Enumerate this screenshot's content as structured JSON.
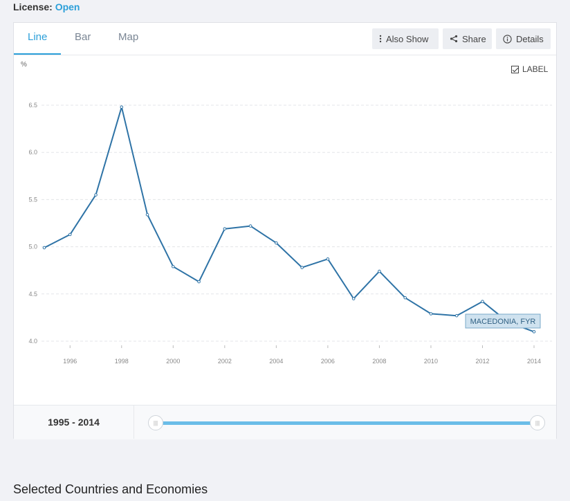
{
  "license": {
    "label": "License:",
    "value": "Open"
  },
  "tabs": [
    {
      "label": "Line"
    },
    {
      "label": "Bar"
    },
    {
      "label": "Map"
    }
  ],
  "toolbar": {
    "also_show": "Also Show",
    "share": "Share",
    "details": "Details"
  },
  "label_toggle": {
    "text": "LABEL",
    "checked": true
  },
  "range": {
    "text": "1995 - 2014"
  },
  "slider": {
    "handle_glyph": "|||"
  },
  "section_title": "Selected Countries and Economies",
  "colors": {
    "accent": "#2b9fd9",
    "line": "#2e73a6",
    "slider": "#6bbde8"
  },
  "chart_data": {
    "type": "line",
    "ylabel": "%",
    "ylim": [
      4.0,
      6.5
    ],
    "yticks": [
      "4.0",
      "4.5",
      "5.0",
      "5.5",
      "6.0",
      "6.5"
    ],
    "xlim": [
      1995,
      2014
    ],
    "xticks": [
      "1996",
      "1998",
      "2000",
      "2002",
      "2004",
      "2006",
      "2008",
      "2010",
      "2012",
      "2014"
    ],
    "grid": true,
    "series": [
      {
        "name": "MACEDONIA, FYR",
        "x": [
          1995,
          1996,
          1997,
          1998,
          1999,
          2000,
          2001,
          2002,
          2003,
          2004,
          2005,
          2006,
          2007,
          2008,
          2009,
          2010,
          2011,
          2012,
          2013,
          2014
        ],
        "values": [
          4.99,
          5.13,
          5.55,
          6.48,
          5.34,
          4.79,
          4.63,
          5.19,
          5.22,
          5.04,
          4.78,
          4.87,
          4.45,
          4.74,
          4.46,
          4.29,
          4.27,
          4.42,
          4.2,
          4.1
        ]
      }
    ]
  }
}
